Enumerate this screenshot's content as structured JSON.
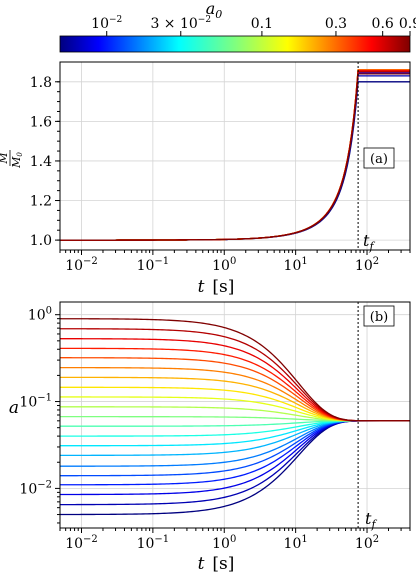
{
  "colorbar": {
    "label_main": "a",
    "label_sub": "0",
    "ticks": [
      {
        "value": 0.01,
        "base": "10",
        "exp": "−2",
        "mult": ""
      },
      {
        "value": 0.03,
        "base": "10",
        "exp": "−2",
        "mult": "3 × "
      },
      {
        "value": 0.1,
        "text": "0.1"
      },
      {
        "value": 0.3,
        "text": "0.3"
      },
      {
        "value": 0.6,
        "text": "0.6"
      },
      {
        "value": 0.9,
        "text": "0.9"
      }
    ],
    "range": [
      0.005,
      0.9
    ],
    "colormap": "jet"
  },
  "panel_a": {
    "label": "(a)",
    "tf_label": "t",
    "tf_sub": "f",
    "xlabel": "t",
    "xunit": "[s]",
    "ylabel_num": "M",
    "ylabel_den": "M",
    "ylabel_den_sub": "0",
    "yticks": [
      "1.0",
      "1.2",
      "1.4",
      "1.6",
      "1.8"
    ]
  },
  "panel_b": {
    "label": "(b)",
    "tf_label": "t",
    "tf_sub": "f",
    "xlabel": "t",
    "xunit": "[s]",
    "ylabel": "a"
  },
  "chart_data": [
    {
      "type": "line",
      "panel": "a",
      "x_scale": "log",
      "xlim": [
        0.005,
        400
      ],
      "ylim": [
        0.95,
        1.9
      ],
      "t_f": 75,
      "grid": true,
      "series_count": 21,
      "series_a0": [
        0.005,
        0.0065,
        0.0085,
        0.011,
        0.014,
        0.018,
        0.024,
        0.031,
        0.04,
        0.052,
        0.067,
        0.087,
        0.113,
        0.146,
        0.19,
        0.246,
        0.32,
        0.41,
        0.53,
        0.69,
        0.9
      ],
      "M_final": [
        1.8,
        1.83,
        1.84,
        1.845,
        1.85,
        1.85,
        1.855,
        1.855,
        1.855,
        1.86,
        1.86,
        1.86,
        1.86,
        1.86,
        1.86,
        1.86,
        1.86,
        1.855,
        1.855,
        1.85,
        1.84
      ],
      "x": [
        0.005,
        0.01,
        0.1,
        1,
        3,
        10,
        20,
        40,
        75,
        400
      ],
      "M_mid_curve": [
        1.0,
        1.0,
        1.0,
        1.012,
        1.035,
        1.11,
        1.22,
        1.44,
        1.86,
        1.86
      ]
    },
    {
      "type": "line",
      "panel": "b",
      "x_scale": "log",
      "y_scale": "log",
      "xlim": [
        0.005,
        400
      ],
      "ylim": [
        0.0035,
        1.4
      ],
      "t_f": 75,
      "a_final": 0.06,
      "grid": true,
      "series_a0": [
        0.005,
        0.0065,
        0.0085,
        0.011,
        0.014,
        0.018,
        0.024,
        0.031,
        0.04,
        0.052,
        0.067,
        0.087,
        0.113,
        0.146,
        0.19,
        0.246,
        0.32,
        0.41,
        0.53,
        0.69,
        0.9
      ],
      "x": [
        0.005,
        0.01,
        0.1,
        1,
        10,
        75,
        400
      ],
      "note": "each series starts at its a0 and relaxes to a_final by t_f, then stays constant"
    }
  ]
}
